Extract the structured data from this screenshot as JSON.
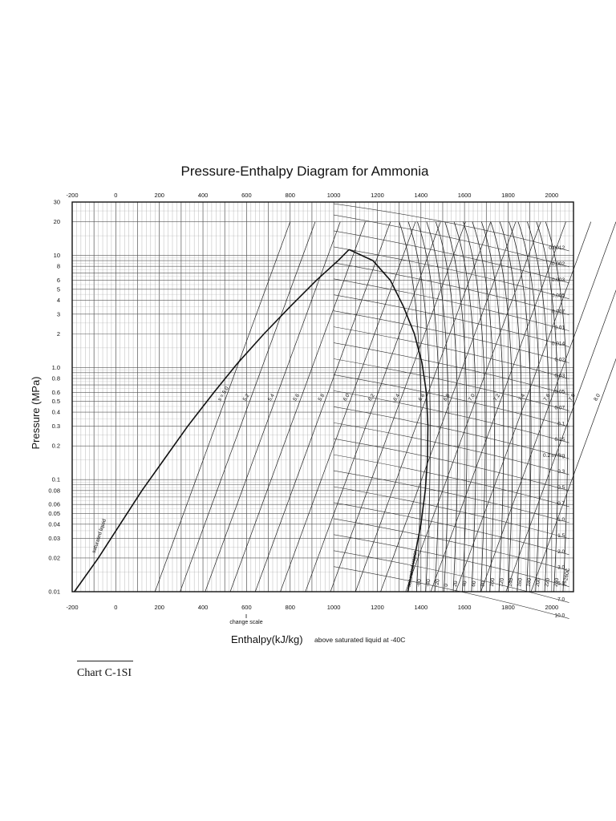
{
  "chart_data": {
    "type": "line",
    "title": "Pressure-Enthalpy Diagram for Ammonia",
    "xlabel": "Enthalpy(kJ/kg)",
    "xlabel_note": "above saturated liquid at -40C",
    "change_scale_note": "change scale",
    "ylabel": "Pressure (MPa)",
    "y_scale": "log",
    "xlim": [
      -200,
      2100
    ],
    "ylim": [
      0.01,
      30
    ],
    "x_ticks_top": [
      "-200",
      "0",
      "200",
      "400",
      "600",
      "800",
      "1000",
      "1200",
      "1400",
      "1600",
      "1800",
      "2000"
    ],
    "x_ticks_bottom": [
      "-200",
      "0",
      "200",
      "400",
      "600",
      "800",
      "1000",
      "1200",
      "1400",
      "1600",
      "1800",
      "2000"
    ],
    "y_ticks": [
      {
        "value": 30,
        "label": "30"
      },
      {
        "value": 20,
        "label": "20"
      },
      {
        "value": 10,
        "label": "10"
      },
      {
        "value": 8,
        "label": "8"
      },
      {
        "value": 6,
        "label": "6"
      },
      {
        "value": 5,
        "label": "5"
      },
      {
        "value": 4,
        "label": "4"
      },
      {
        "value": 3,
        "label": "3"
      },
      {
        "value": 2,
        "label": "2"
      },
      {
        "value": 1,
        "label": "1.0"
      },
      {
        "value": 0.8,
        "label": "0.8"
      },
      {
        "value": 0.6,
        "label": "0.6"
      },
      {
        "value": 0.5,
        "label": "0.5"
      },
      {
        "value": 0.4,
        "label": "0.4"
      },
      {
        "value": 0.3,
        "label": "0.3"
      },
      {
        "value": 0.2,
        "label": "0.2"
      },
      {
        "value": 0.1,
        "label": "0.1"
      },
      {
        "value": 0.08,
        "label": "0.08"
      },
      {
        "value": 0.06,
        "label": "0.06"
      },
      {
        "value": 0.05,
        "label": "0.05"
      },
      {
        "value": 0.04,
        "label": "0.04"
      },
      {
        "value": 0.03,
        "label": "0.03"
      },
      {
        "value": 0.02,
        "label": "0.02"
      },
      {
        "value": 0.01,
        "label": "0.01"
      }
    ],
    "grid": true,
    "saturation_dome": {
      "liquid_label": "saturated liquid",
      "vapor_label": "saturated vapor",
      "liquid": {
        "x": [
          -190,
          -80,
          20,
          120,
          220,
          330,
          450,
          560,
          680,
          800,
          920,
          1020,
          1070
        ],
        "y": [
          0.01,
          0.02,
          0.04,
          0.08,
          0.15,
          0.3,
          0.6,
          1.1,
          2,
          3.5,
          6,
          9,
          11.3
        ]
      },
      "vapor": {
        "x": [
          1340,
          1370,
          1400,
          1420,
          1430,
          1432,
          1425,
          1405,
          1370,
          1320,
          1260,
          1180,
          1070
        ],
        "y": [
          0.01,
          0.02,
          0.04,
          0.08,
          0.15,
          0.3,
          0.6,
          1.1,
          2,
          3.5,
          6,
          9,
          11.3
        ]
      }
    },
    "isotherm_labels": [
      "-60",
      "-40",
      "-20",
      "0",
      "20",
      "40",
      "60",
      "80",
      "100",
      "120",
      "140",
      "160",
      "180",
      "200",
      "220",
      "240",
      "T=260C"
    ],
    "isochore_labels": [
      "0.0012",
      "0.002",
      "0.003",
      "0.005",
      "0.007",
      "0.01",
      "0.014",
      "0.02",
      "0.03",
      "0.05",
      "0.07",
      "0.1",
      "0.15",
      "0.2 m³/kg",
      "0.3",
      "0.5",
      "0.7",
      "1.0",
      "1.5",
      "2.0",
      "3.0",
      "5.0",
      "7.0",
      "10.0"
    ],
    "isentrope_labels": [
      "s = 5.0",
      "5.2",
      "5.4",
      "5.6",
      "5.8",
      "6.0",
      "6.2",
      "6.4",
      "6.6",
      "6.8",
      "7.0",
      "7.2",
      "7.4",
      "7.6",
      "7.8",
      "8.0"
    ]
  },
  "caption": "Chart C-1SI"
}
